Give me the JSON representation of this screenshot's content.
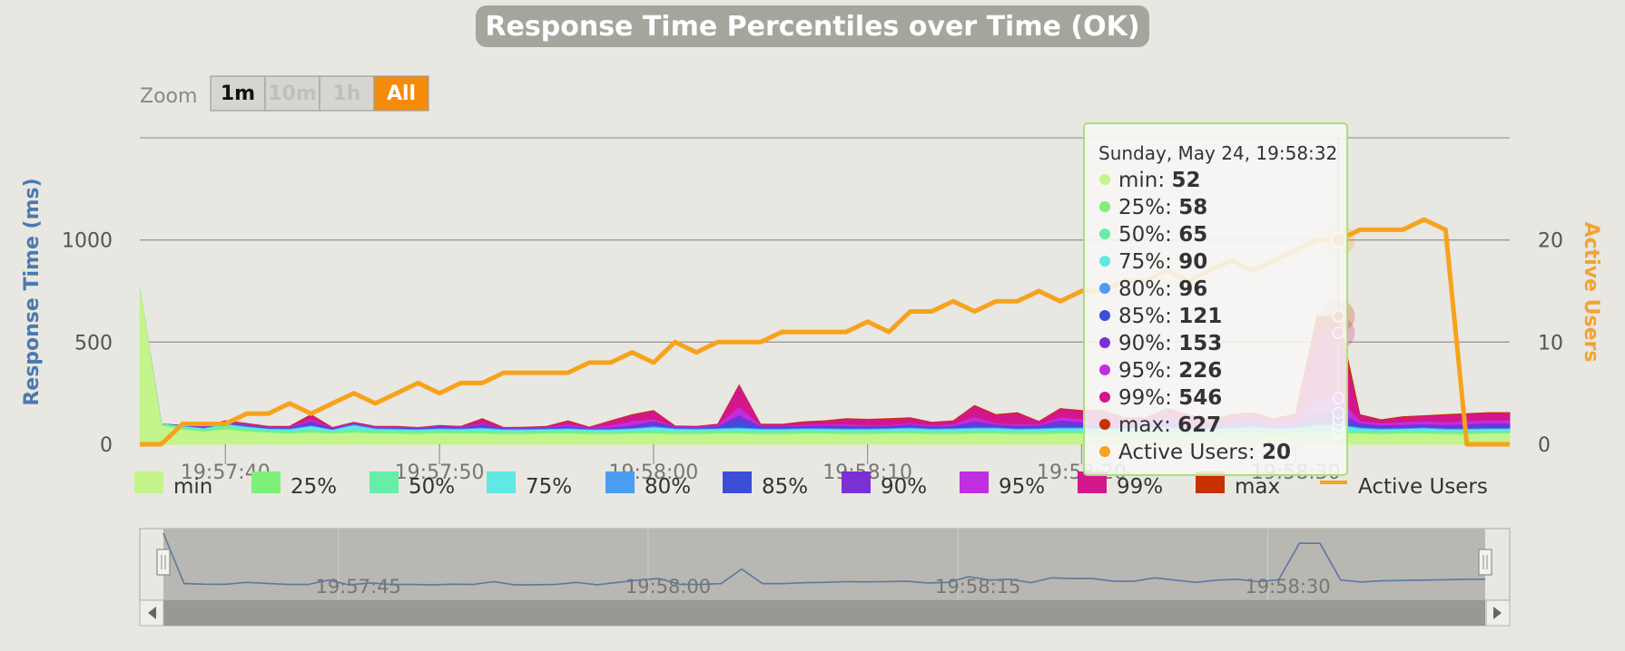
{
  "colors": {
    "background": "#e8e7e1",
    "title_bg": "#a6a59d",
    "axis_left": "#4a7ab0",
    "axis_right": "#f2a330",
    "active_users": "#f7a21b",
    "zoom_active": "#f58b0b",
    "tooltip_border": "#a8e07a"
  },
  "chart_data": {
    "type": "area",
    "title": "Response Time Percentiles over Time (OK)",
    "y_left_label": "Response Time (ms)",
    "y_right_label": "Active Users",
    "y_left_ticks": [
      0,
      500,
      1000
    ],
    "y_right_ticks": [
      0,
      10,
      20
    ],
    "ylim_left": [
      0,
      1500
    ],
    "ylim_right": [
      0,
      30
    ],
    "x_start": "19:57:36",
    "x_end": "19:58:40",
    "x_ticks": [
      "19:57:40",
      "19:57:50",
      "19:58:00",
      "19:58:10",
      "19:58:20",
      "19:58:30"
    ],
    "grid": true,
    "legend_position": "bottom",
    "times": [
      "19:57:36",
      "19:57:37",
      "19:57:38",
      "19:57:39",
      "19:57:40",
      "19:57:41",
      "19:57:42",
      "19:57:43",
      "19:57:44",
      "19:57:45",
      "19:57:46",
      "19:57:47",
      "19:57:48",
      "19:57:49",
      "19:57:50",
      "19:57:51",
      "19:57:52",
      "19:57:53",
      "19:57:54",
      "19:57:55",
      "19:57:56",
      "19:57:57",
      "19:57:58",
      "19:57:59",
      "19:58:00",
      "19:58:01",
      "19:58:02",
      "19:58:03",
      "19:58:04",
      "19:58:05",
      "19:58:06",
      "19:58:07",
      "19:58:08",
      "19:58:09",
      "19:58:10",
      "19:58:11",
      "19:58:12",
      "19:58:13",
      "19:58:14",
      "19:58:15",
      "19:58:16",
      "19:58:17",
      "19:58:18",
      "19:58:19",
      "19:58:20",
      "19:58:21",
      "19:58:22",
      "19:58:23",
      "19:58:24",
      "19:58:25",
      "19:58:26",
      "19:58:27",
      "19:58:28",
      "19:58:29",
      "19:58:30",
      "19:58:31",
      "19:58:32",
      "19:58:33",
      "19:58:34",
      "19:58:35",
      "19:58:36",
      "19:58:37",
      "19:58:38",
      "19:58:39",
      "19:58:40"
    ],
    "series": [
      {
        "name": "min",
        "color": "#c3f58c",
        "values": [
          760,
          90,
          70,
          60,
          70,
          60,
          55,
          50,
          55,
          50,
          55,
          50,
          50,
          48,
          52,
          50,
          50,
          48,
          48,
          50,
          50,
          48,
          48,
          50,
          50,
          48,
          48,
          50,
          50,
          48,
          48,
          50,
          50,
          48,
          48,
          50,
          50,
          48,
          48,
          50,
          50,
          48,
          48,
          50,
          50,
          48,
          48,
          50,
          50,
          48,
          48,
          50,
          50,
          48,
          50,
          52,
          52,
          50,
          48,
          50,
          50,
          48,
          48,
          50,
          50
        ]
      },
      {
        "name": "25%",
        "color": "#7df07a",
        "values": [
          760,
          95,
          75,
          65,
          80,
          68,
          60,
          55,
          60,
          56,
          60,
          56,
          56,
          54,
          58,
          56,
          56,
          54,
          54,
          56,
          56,
          54,
          54,
          56,
          56,
          54,
          54,
          56,
          56,
          54,
          54,
          56,
          56,
          54,
          54,
          56,
          56,
          54,
          54,
          56,
          56,
          54,
          54,
          56,
          56,
          54,
          54,
          56,
          56,
          54,
          54,
          56,
          56,
          54,
          56,
          58,
          58,
          56,
          54,
          56,
          56,
          54,
          54,
          56,
          56
        ]
      },
      {
        "name": "50%",
        "color": "#66eda8",
        "values": [
          760,
          100,
          80,
          70,
          88,
          75,
          66,
          62,
          70,
          62,
          68,
          64,
          62,
          60,
          64,
          62,
          62,
          60,
          60,
          62,
          62,
          60,
          60,
          62,
          62,
          60,
          60,
          62,
          62,
          60,
          60,
          62,
          62,
          60,
          60,
          62,
          62,
          60,
          60,
          62,
          62,
          60,
          60,
          62,
          62,
          60,
          60,
          62,
          62,
          60,
          60,
          62,
          62,
          60,
          62,
          65,
          65,
          62,
          60,
          62,
          62,
          60,
          60,
          62,
          62
        ]
      },
      {
        "name": "75%",
        "color": "#60e8e2",
        "values": [
          760,
          100,
          85,
          75,
          95,
          82,
          72,
          70,
          85,
          68,
          90,
          72,
          70,
          68,
          72,
          70,
          75,
          68,
          68,
          70,
          72,
          68,
          68,
          72,
          80,
          72,
          70,
          72,
          75,
          70,
          70,
          72,
          72,
          70,
          70,
          72,
          75,
          70,
          72,
          75,
          75,
          70,
          72,
          75,
          75,
          70,
          72,
          75,
          78,
          72,
          72,
          75,
          80,
          72,
          75,
          90,
          90,
          75,
          70,
          72,
          75,
          70,
          70,
          72,
          72
        ]
      },
      {
        "name": "80%",
        "color": "#4a9df0",
        "values": [
          760,
          100,
          88,
          78,
          98,
          85,
          75,
          74,
          90,
          70,
          95,
          76,
          74,
          72,
          76,
          74,
          80,
          72,
          72,
          74,
          76,
          72,
          72,
          76,
          85,
          76,
          74,
          76,
          80,
          74,
          74,
          76,
          76,
          74,
          74,
          76,
          80,
          74,
          76,
          80,
          80,
          74,
          76,
          80,
          80,
          74,
          76,
          80,
          82,
          76,
          76,
          80,
          85,
          76,
          80,
          96,
          96,
          80,
          74,
          76,
          80,
          74,
          74,
          76,
          76
        ]
      },
      {
        "name": "85%",
        "color": "#3c4ed8",
        "values": [
          760,
          100,
          90,
          80,
          100,
          90,
          78,
          78,
          95,
          73,
          98,
          78,
          78,
          74,
          80,
          78,
          85,
          74,
          74,
          78,
          80,
          74,
          74,
          80,
          95,
          80,
          78,
          80,
          120,
          80,
          80,
          82,
          82,
          80,
          80,
          82,
          85,
          80,
          82,
          90,
          85,
          80,
          82,
          95,
          90,
          80,
          82,
          90,
          95,
          82,
          82,
          90,
          95,
          82,
          85,
          121,
          121,
          90,
          80,
          82,
          85,
          80,
          82,
          85,
          85
        ]
      },
      {
        "name": "90%",
        "color": "#7b30d6",
        "values": [
          760,
          100,
          90,
          82,
          105,
          92,
          80,
          80,
          110,
          75,
          100,
          80,
          80,
          76,
          85,
          80,
          95,
          76,
          76,
          80,
          85,
          76,
          80,
          90,
          110,
          82,
          80,
          85,
          140,
          85,
          85,
          88,
          90,
          88,
          86,
          88,
          95,
          85,
          88,
          110,
          95,
          88,
          90,
          115,
          105,
          88,
          90,
          100,
          115,
          90,
          90,
          100,
          110,
          90,
          95,
          153,
          153,
          100,
          90,
          92,
          95,
          92,
          95,
          100,
          100
        ]
      },
      {
        "name": "95%",
        "color": "#c02ee0",
        "values": [
          760,
          100,
          90,
          85,
          110,
          95,
          82,
          82,
          120,
          77,
          102,
          82,
          82,
          78,
          88,
          82,
          100,
          78,
          78,
          82,
          95,
          78,
          90,
          110,
          120,
          85,
          82,
          90,
          180,
          88,
          88,
          92,
          95,
          95,
          90,
          92,
          100,
          90,
          95,
          130,
          100,
          95,
          95,
          130,
          120,
          95,
          95,
          110,
          135,
          95,
          95,
          110,
          125,
          95,
          105,
          226,
          226,
          110,
          100,
          105,
          110,
          105,
          110,
          115,
          115
        ]
      },
      {
        "name": "99%",
        "color": "#d4168c",
        "values": [
          760,
          100,
          92,
          88,
          112,
          100,
          85,
          85,
          140,
          80,
          105,
          85,
          86,
          80,
          90,
          85,
          120,
          80,
          82,
          86,
          110,
          82,
          112,
          140,
          160,
          88,
          86,
          95,
          285,
          95,
          95,
          105,
          110,
          120,
          118,
          120,
          125,
          105,
          110,
          185,
          140,
          150,
          110,
          170,
          160,
          160,
          125,
          125,
          170,
          140,
          110,
          140,
          150,
          120,
          145,
          546,
          546,
          140,
          115,
          130,
          135,
          140,
          145,
          150,
          150
        ]
      },
      {
        "name": "max",
        "color": "#c83000",
        "values": [
          760,
          100,
          92,
          90,
          115,
          102,
          88,
          88,
          145,
          82,
          108,
          88,
          88,
          82,
          92,
          88,
          125,
          82,
          84,
          88,
          115,
          84,
          115,
          145,
          165,
          90,
          88,
          98,
          290,
          98,
          98,
          110,
          115,
          125,
          122,
          125,
          130,
          108,
          115,
          190,
          145,
          155,
          112,
          175,
          165,
          165,
          130,
          130,
          175,
          145,
          115,
          145,
          155,
          125,
          150,
          627,
          627,
          145,
          120,
          135,
          140,
          145,
          150,
          155,
          155
        ]
      },
      {
        "name": "Active Users",
        "color": "#f7a21b",
        "axis": "right",
        "values": [
          0,
          0,
          2,
          2,
          2,
          3,
          3,
          4,
          3,
          4,
          5,
          4,
          5,
          6,
          5,
          6,
          6,
          7,
          7,
          7,
          7,
          8,
          8,
          9,
          8,
          10,
          9,
          10,
          10,
          10,
          11,
          11,
          11,
          11,
          12,
          11,
          13,
          13,
          14,
          13,
          14,
          14,
          15,
          14,
          15,
          15,
          16,
          16,
          17,
          16,
          17,
          18,
          17,
          18,
          19,
          20,
          20,
          21,
          21,
          21,
          22,
          21,
          0,
          0,
          0
        ]
      }
    ],
    "tooltip": {
      "header": "Sunday, May 24, 19:58:32",
      "index": 56,
      "rows": [
        {
          "label": "min",
          "value": "52"
        },
        {
          "label": "25%",
          "value": "58"
        },
        {
          "label": "50%",
          "value": "65"
        },
        {
          "label": "75%",
          "value": "90"
        },
        {
          "label": "80%",
          "value": "96"
        },
        {
          "label": "85%",
          "value": "121"
        },
        {
          "label": "90%",
          "value": "153"
        },
        {
          "label": "95%",
          "value": "226"
        },
        {
          "label": "99%",
          "value": "546"
        },
        {
          "label": "max",
          "value": "627"
        },
        {
          "label": "Active Users",
          "value": "20"
        }
      ]
    },
    "navigator": {
      "x_ticks": [
        "19:57:45",
        "19:58:00",
        "19:58:15",
        "19:58:30"
      ]
    }
  },
  "zoom": {
    "label": "Zoom",
    "buttons": [
      {
        "label": "1m",
        "state": "normal"
      },
      {
        "label": "10m",
        "state": "disabled"
      },
      {
        "label": "1h",
        "state": "disabled"
      },
      {
        "label": "All",
        "state": "active"
      }
    ]
  }
}
